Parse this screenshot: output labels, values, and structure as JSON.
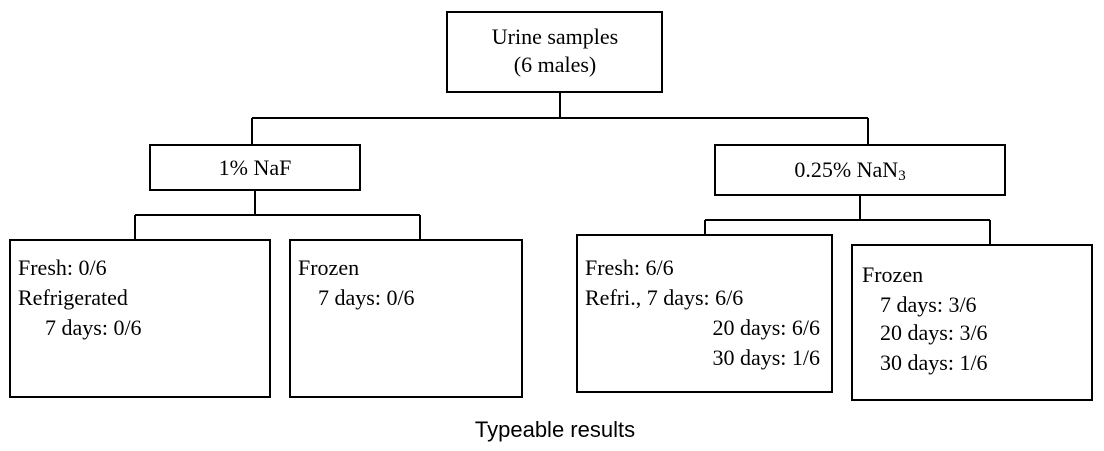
{
  "root": {
    "lines": [
      "Urine samples",
      "(6 males)"
    ]
  },
  "branches": [
    {
      "label": "1% NaF",
      "leaves": [
        {
          "lines": [
            "Fresh: 0/6",
            "Refrigerated",
            "7 days: 0/6"
          ]
        },
        {
          "lines": [
            "Frozen",
            "7 days: 0/6"
          ]
        }
      ]
    },
    {
      "label": "0.25% NaN",
      "subscript": "3",
      "leaves": [
        {
          "lines": [
            "Fresh: 6/6",
            "Refri., 7 days: 6/6",
            "20 days: 6/6",
            "30 days: 1/6"
          ]
        },
        {
          "lines": [
            "Frozen",
            "7 days: 3/6",
            "20 days: 3/6",
            "30 days: 1/6"
          ]
        }
      ]
    }
  ],
  "caption": "Typeable results"
}
